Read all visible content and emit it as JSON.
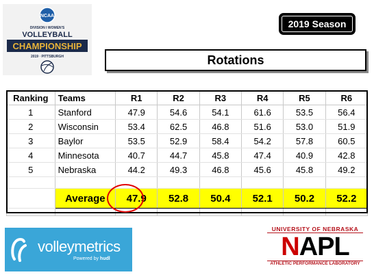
{
  "logo": {
    "ncaa": "NCAA",
    "division": "DIVISION I WOMEN'S",
    "line1": "VOLLEYBALL",
    "line2": "CHAMPIONSHIP",
    "line3": "2019 · PITTSBURGH"
  },
  "season": "2019 Season",
  "title": "Rotations",
  "table": {
    "headers": [
      "Ranking",
      "Teams",
      "R1",
      "R2",
      "R3",
      "R4",
      "R5",
      "R6"
    ],
    "rows": [
      {
        "rank": "1",
        "team": "Stanford",
        "values": [
          "47.9",
          "54.6",
          "54.1",
          "61.6",
          "53.5",
          "56.4"
        ]
      },
      {
        "rank": "2",
        "team": "Wisconsin",
        "values": [
          "53.4",
          "62.5",
          "46.8",
          "51.6",
          "53.0",
          "51.9"
        ]
      },
      {
        "rank": "3",
        "team": "Baylor",
        "values": [
          "53.5",
          "52.9",
          "58.4",
          "54.2",
          "57.8",
          "60.5"
        ]
      },
      {
        "rank": "4",
        "team": "Minnesota",
        "values": [
          "40.7",
          "44.7",
          "45.8",
          "47.4",
          "40.9",
          "42.8"
        ]
      },
      {
        "rank": "5",
        "team": "Nebraska",
        "values": [
          "44.2",
          "49.3",
          "46.8",
          "45.6",
          "45.8",
          "49.2"
        ]
      }
    ],
    "average": {
      "label": "Average",
      "values": [
        "47.9",
        "52.8",
        "50.4",
        "52.1",
        "50.2",
        "52.2"
      ]
    }
  },
  "volleymetrics": {
    "name": "volleymetrics",
    "powered": "Powered by",
    "hudl": "hudl"
  },
  "napl": {
    "top": "UNIVERSITY OF NEBRASKA",
    "main_n": "N",
    "main_rest": "APL",
    "bottom": "ATHLETIC PERFORMANCE LABORATORY"
  },
  "colors": {
    "highlight": "#ffff00",
    "circle": "#e00000",
    "vm_blue": "#3aa6d8",
    "napl_red": "#cc0000"
  }
}
